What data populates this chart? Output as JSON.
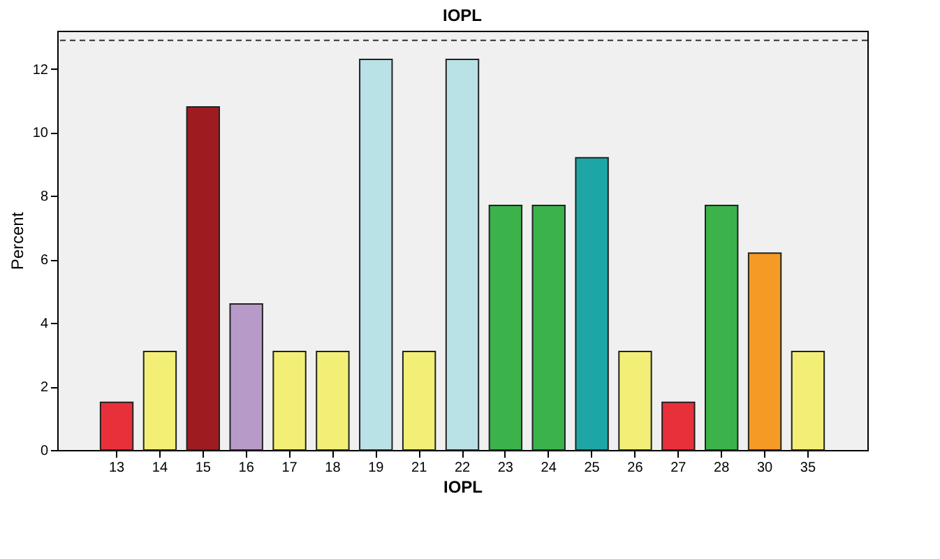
{
  "chart_data": {
    "type": "bar",
    "title": "IOPL",
    "xlabel": "IOPL",
    "ylabel": "Percent",
    "categories": [
      "13",
      "14",
      "15",
      "16",
      "17",
      "18",
      "19",
      "21",
      "22",
      "23",
      "24",
      "25",
      "26",
      "27",
      "28",
      "30",
      "35"
    ],
    "values": [
      1.5,
      3.1,
      10.8,
      4.6,
      3.1,
      3.1,
      12.3,
      3.1,
      12.3,
      7.7,
      7.7,
      9.2,
      3.1,
      1.5,
      7.7,
      6.2,
      3.1
    ],
    "colors": [
      "#e8303a",
      "#f3ef76",
      "#9e1c20",
      "#b89ac8",
      "#f3ef76",
      "#f3ef76",
      "#b9e2e6",
      "#f3ef76",
      "#b9e2e6",
      "#3bb34a",
      "#3bb34a",
      "#1ea6a6",
      "#f3ef76",
      "#e8303a",
      "#3bb34a",
      "#f59a25",
      "#f3ef76"
    ],
    "ylim": [
      0,
      13.2
    ],
    "yticks": [
      0,
      2,
      4,
      6,
      8,
      10,
      12
    ],
    "ref_lines": [
      {
        "axis": "y",
        "value": 12.9,
        "line_style": "dashed",
        "color": "#333333"
      }
    ],
    "grid": false
  }
}
